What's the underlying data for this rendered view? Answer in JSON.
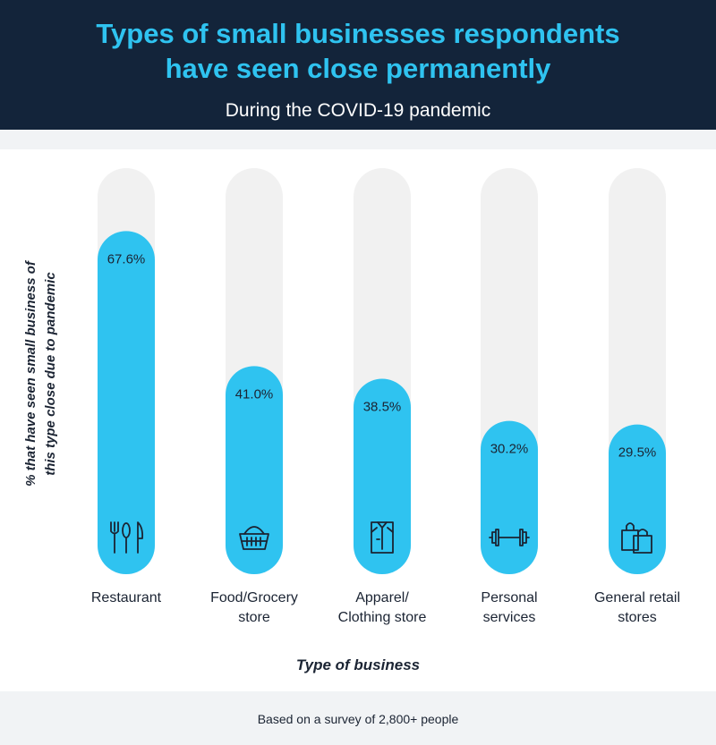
{
  "header": {
    "title_line1": "Types of small businesses respondents",
    "title_line2": "have seen close permanently",
    "subtitle": "During the COVID-19 pandemic"
  },
  "colors": {
    "header_bg": "#13243a",
    "title": "#2fc3f0",
    "bar": "#2fc3f0",
    "track": "#f1f1f1",
    "text": "#1b2433"
  },
  "chart_data": {
    "type": "bar",
    "categories": [
      [
        "Restaurant"
      ],
      [
        "Food/Grocery",
        "store"
      ],
      [
        "Apparel/",
        "Clothing store"
      ],
      [
        "Personal",
        "services"
      ],
      [
        "General retail",
        "stores"
      ]
    ],
    "values": [
      67.6,
      41.0,
      38.5,
      30.2,
      29.5
    ],
    "value_labels": [
      "67.6%",
      "41.0%",
      "38.5%",
      "30.2%",
      "29.5%"
    ],
    "icons": [
      "utensils-icon",
      "basket-icon",
      "shirt-icon",
      "dumbbell-icon",
      "shopping-bags-icon"
    ],
    "ylabel_line1": "% that have seen small business of",
    "ylabel_line2": "this type close due to pandemic",
    "xlabel": "Type of business",
    "ylim": [
      0,
      80
    ],
    "grid": false
  },
  "footnote": "Based on a survey of 2,800+ people"
}
